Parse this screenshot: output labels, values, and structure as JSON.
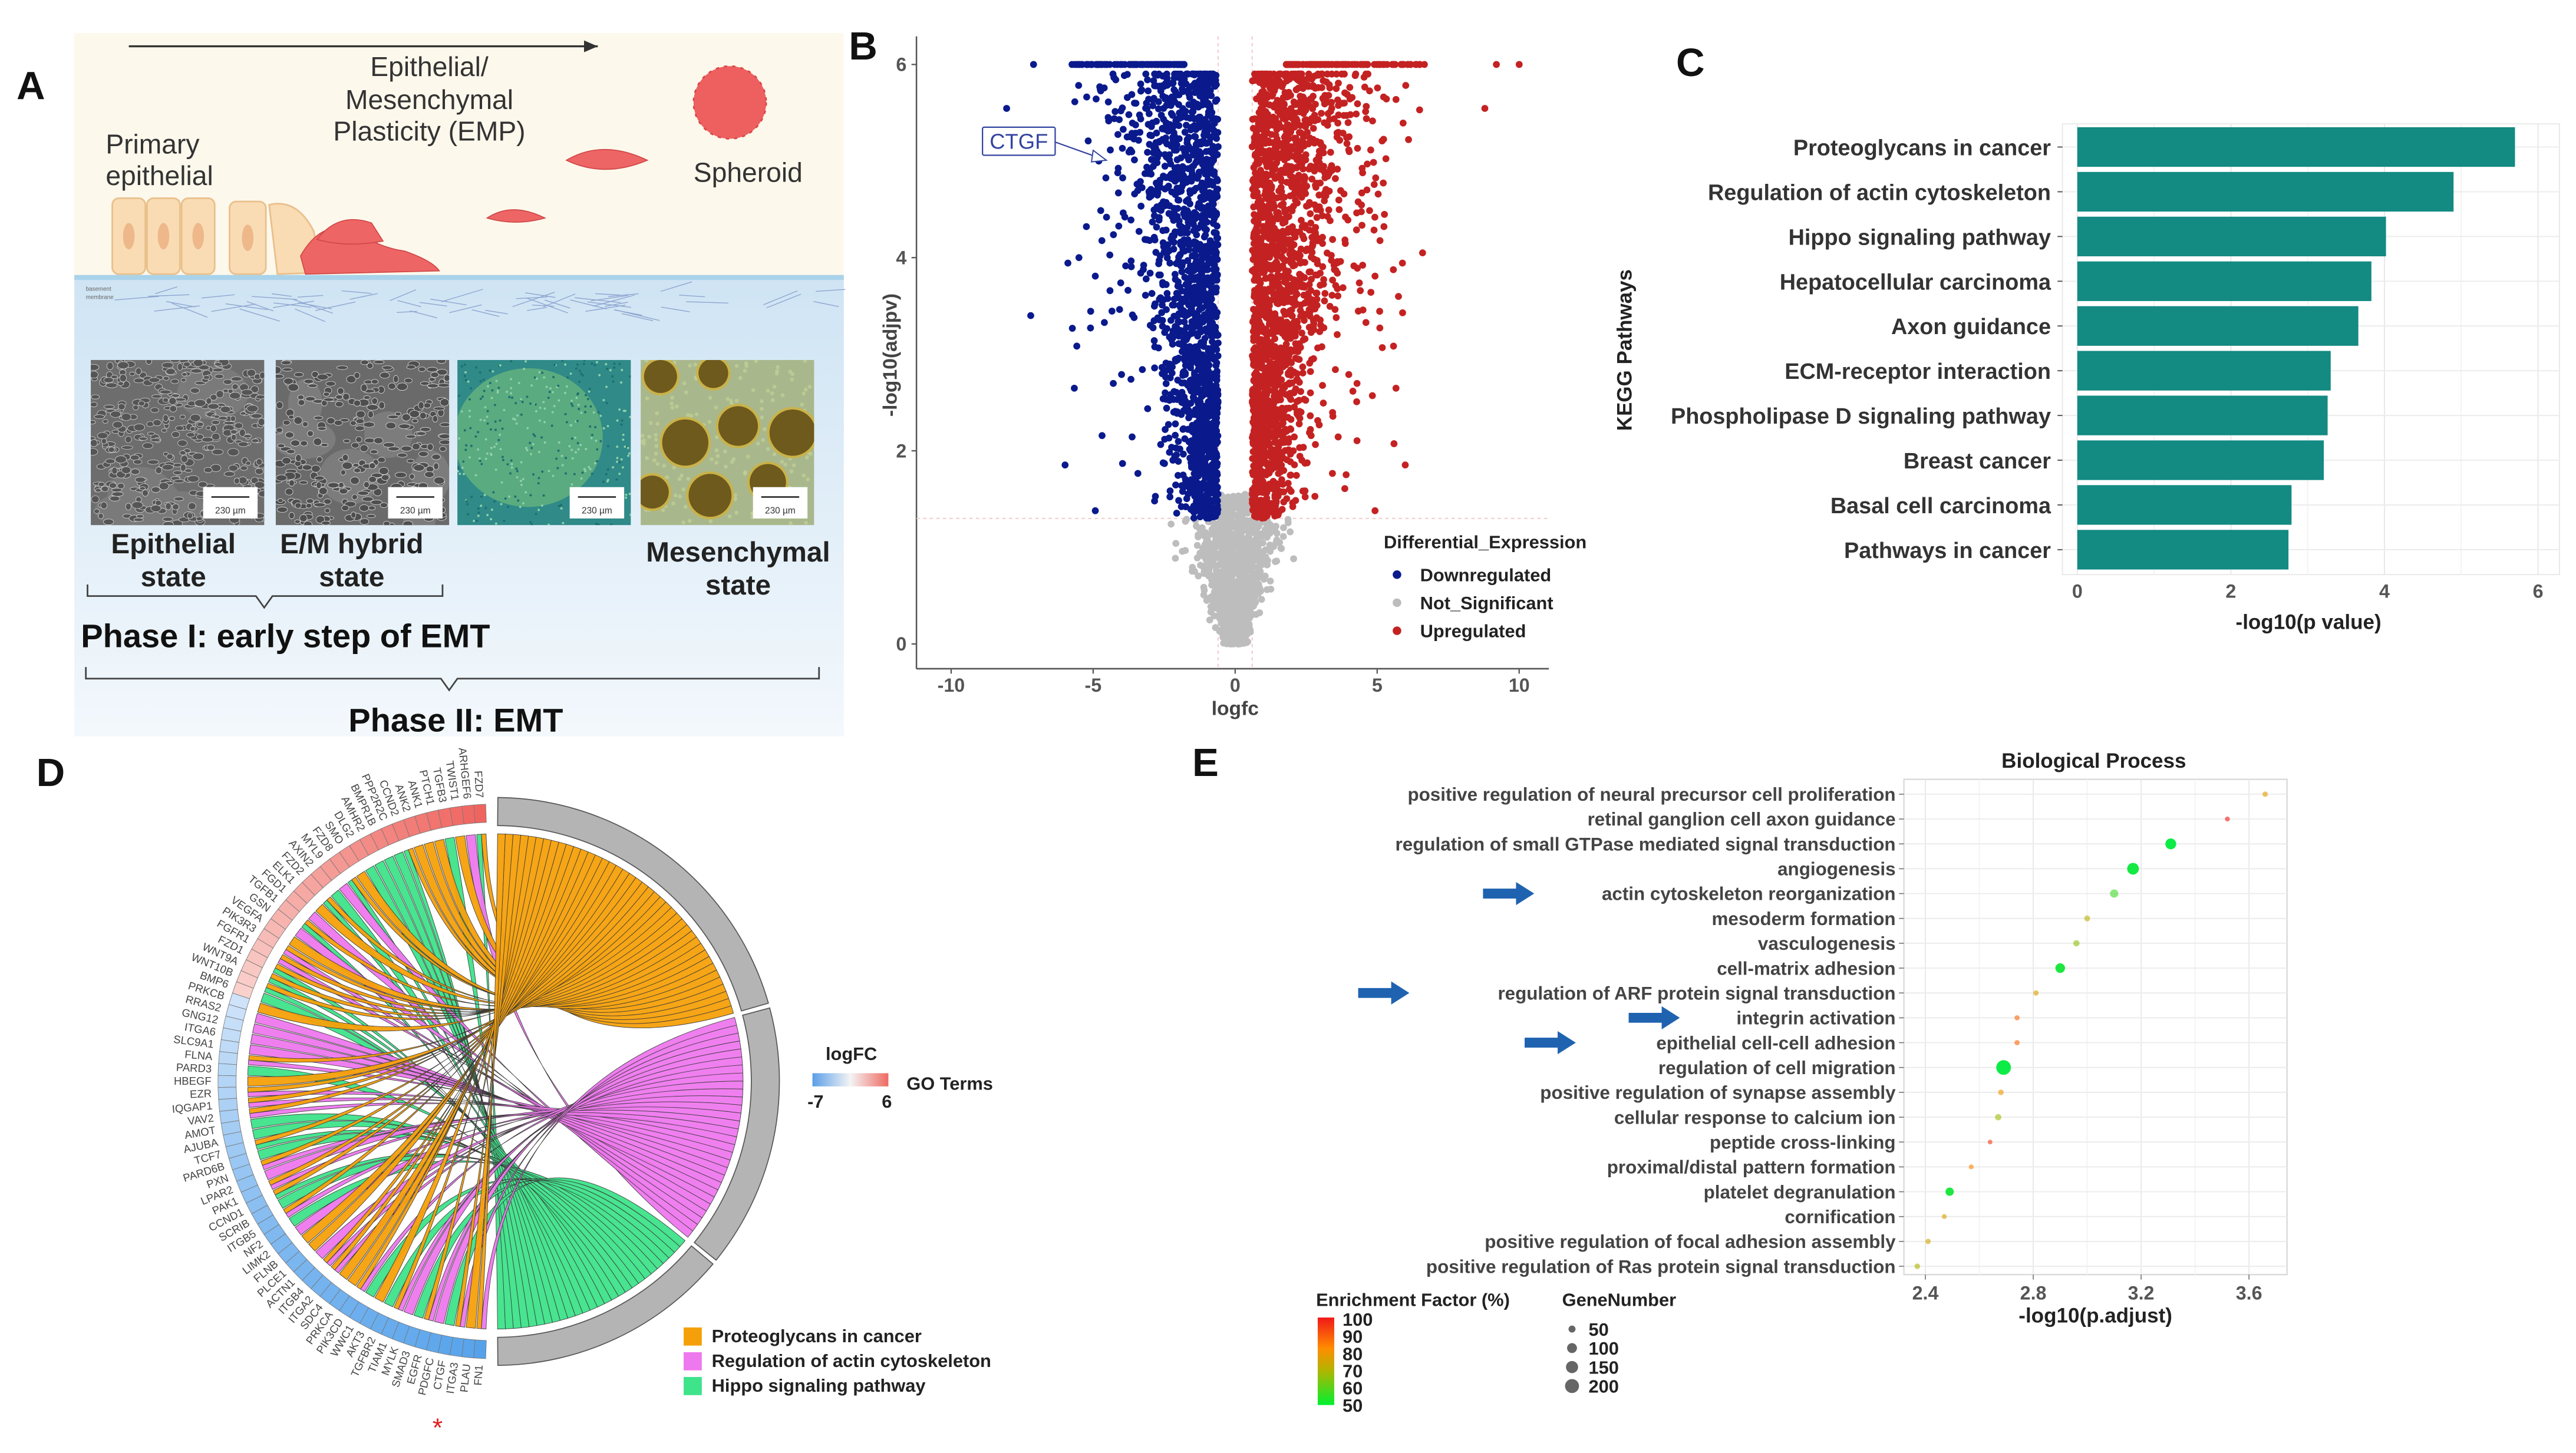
{
  "panels": {
    "a": "A",
    "b": "B",
    "c": "C",
    "d": "D",
    "e": "E"
  },
  "panel_a": {
    "emp_title": [
      "Epithelial/",
      "Mesenchymal",
      "Plasticity (EMP)"
    ],
    "primary": [
      "Primary",
      "epithelial"
    ],
    "spheroid": "Spheroid",
    "membrane": [
      "basement",
      "membrane"
    ],
    "scale_bar": "230 µm",
    "states": {
      "epithelial": [
        "Epithelial",
        "state"
      ],
      "hybrid": [
        "E/M hybrid",
        "state"
      ],
      "mesenchymal": [
        "Mesenchymal",
        "state"
      ]
    },
    "phase1": "Phase I: early step of EMT",
    "phase2": "Phase II: EMT",
    "colors": {
      "bg": "#fdf8ec",
      "cell": "#f9dcb4",
      "mes_cell": "#ee6565",
      "membrane": "#a9d3ea"
    }
  },
  "chart_data": [
    {
      "id": "volcano",
      "type": "scatter",
      "xlabel": "logfc",
      "ylabel": "-log10(adjpv)",
      "xlim": [
        -11,
        11
      ],
      "ylim": [
        -0.2,
        6.3
      ],
      "xticks": [
        "-10",
        "-5",
        "0",
        "5",
        "10"
      ],
      "yticks": [
        "0",
        "2",
        "4",
        "6"
      ],
      "thresholds": {
        "logfc": 0.6,
        "neg_log10_adjpv": 1.3
      },
      "legend_title": "Differential_Expression",
      "legend_position": "right",
      "series": [
        {
          "name": "Downregulated",
          "color": "#0a1a8c",
          "approx_count": 1600
        },
        {
          "name": "Not_Significant",
          "color": "#bdbdbd",
          "approx_count": 1500
        },
        {
          "name": "Upregulated",
          "color": "#c42222",
          "approx_count": 1900
        }
      ],
      "annotation": {
        "label": "CTGF",
        "x": -4.8,
        "y": 5.0
      },
      "grid": false
    },
    {
      "id": "kegg",
      "type": "bar",
      "orientation": "horizontal",
      "ylabel": "KEGG Pathways",
      "xlabel": "-log10(p value)",
      "xlim": [
        0,
        6.2
      ],
      "xticks": [
        "0",
        "2",
        "4",
        "6"
      ],
      "categories": [
        "Proteoglycans in cancer",
        "Regulation of actin cytoskeleton",
        "Hippo signaling pathway",
        "Hepatocellular carcinoma",
        "Axon guidance",
        "ECM-receptor interaction",
        "Phospholipase D signaling pathway",
        "Breast cancer",
        "Basal cell carcinoma",
        "Pathways in cancer"
      ],
      "values": [
        5.7,
        4.9,
        4.02,
        3.83,
        3.66,
        3.3,
        3.26,
        3.21,
        2.79,
        2.75
      ],
      "color": "#138a82",
      "grid": true
    },
    {
      "id": "chord",
      "type": "chord",
      "legend_title": "logFC",
      "logfc_range": [
        "-7",
        "6"
      ],
      "terms_title": "GO Terms",
      "terms": [
        {
          "key": "P",
          "name": "Proteoglycans in cancer",
          "color": "#f5a00a"
        },
        {
          "key": "A",
          "name": "Regulation of actin cytoskeleton",
          "color": "#ee78ee"
        },
        {
          "key": "H",
          "name": "Hippo signaling pathway",
          "color": "#3ee38a"
        }
      ],
      "genes": [
        [
          "FZD7",
          6,
          "PH"
        ],
        [
          "ARHGEF6",
          5.8,
          "A"
        ],
        [
          "TWIST1",
          5.6,
          "P"
        ],
        [
          "TGFB3",
          5.4,
          "H"
        ],
        [
          "PTCH1",
          5.2,
          "P"
        ],
        [
          "ANK1",
          5,
          "P"
        ],
        [
          "ANK2",
          4.8,
          "P"
        ],
        [
          "CCND2",
          4.6,
          "PH"
        ],
        [
          "PPP2R2C",
          4.4,
          "H"
        ],
        [
          "BMPR1B",
          4.2,
          "H"
        ],
        [
          "AMHR2",
          4,
          "H"
        ],
        [
          "DLG2",
          3.8,
          "H"
        ],
        [
          "SMO",
          3.6,
          "P"
        ],
        [
          "FZD8",
          3.4,
          "PH"
        ],
        [
          "MYL9",
          3.2,
          "A"
        ],
        [
          "AXIN2",
          3,
          "H"
        ],
        [
          "FZD2",
          2.8,
          "PH"
        ],
        [
          "ELK1",
          2.6,
          "P"
        ],
        [
          "FGD1",
          2.4,
          "A"
        ],
        [
          "TGFB1",
          2.2,
          "PH"
        ],
        [
          "GSN",
          2,
          "A"
        ],
        [
          "VEGFA",
          1.8,
          "P"
        ],
        [
          "PIK3R3",
          1.6,
          "PA"
        ],
        [
          "FGFR1",
          1.4,
          "PA"
        ],
        [
          "FZD1",
          1.2,
          "PH"
        ],
        [
          "WNT9A",
          1,
          "PH"
        ],
        [
          "WNT10B",
          0.8,
          "PH"
        ],
        [
          "BMP6",
          0.6,
          "H"
        ],
        [
          "PRKCB",
          -0.5,
          "P"
        ],
        [
          "RRAS2",
          -0.7,
          "A"
        ],
        [
          "GNG12",
          -0.9,
          "A"
        ],
        [
          "ITGA6",
          -1.1,
          "A"
        ],
        [
          "SLC9A1",
          -1.3,
          "A"
        ],
        [
          "FLNA",
          -1.5,
          "PA"
        ],
        [
          "PARD3",
          -1.7,
          "H"
        ],
        [
          "HBEGF",
          -1.9,
          "P"
        ],
        [
          "EZR",
          -2.1,
          "PA"
        ],
        [
          "IQGAP1",
          -2.3,
          "PA"
        ],
        [
          "VAV2",
          -2.5,
          "PA"
        ],
        [
          "AMOT",
          -2.7,
          "H"
        ],
        [
          "AJUBA",
          -2.9,
          "H"
        ],
        [
          "TCF7",
          -3.1,
          "PH"
        ],
        [
          "PARD6B",
          -3.3,
          "H"
        ],
        [
          "PXN",
          -3.5,
          "PA"
        ],
        [
          "LPAR2",
          -3.7,
          "A"
        ],
        [
          "PAK1",
          -3.9,
          "PA"
        ],
        [
          "CCND1",
          -4.1,
          "PH"
        ],
        [
          "SCRIB",
          -4.3,
          "H"
        ],
        [
          "ITGB5",
          -4.5,
          "PA"
        ],
        [
          "NF2",
          -4.7,
          "H"
        ],
        [
          "LIMK2",
          -4.8,
          "A"
        ],
        [
          "FLNB",
          -4.9,
          "P"
        ],
        [
          "PLCE1",
          -5,
          "P"
        ],
        [
          "ACTN1",
          -5.1,
          "A"
        ],
        [
          "ITGB4",
          -5.2,
          "PA"
        ],
        [
          "ITGA2",
          -5.3,
          "PA"
        ],
        [
          "SDC4",
          -5.4,
          "P"
        ],
        [
          "PRKCA",
          -5.5,
          "P"
        ],
        [
          "PIK3CD",
          -5.6,
          "PA"
        ],
        [
          "WWC1",
          -5.7,
          "H"
        ],
        [
          "AKT3",
          -5.8,
          "P"
        ],
        [
          "TGFBR2",
          -5.9,
          "H"
        ],
        [
          "TIAM1",
          -6,
          "PA"
        ],
        [
          "MYLK",
          -6.1,
          "A"
        ],
        [
          "SMAD3",
          -6.2,
          "H"
        ],
        [
          "EGFR",
          -6.3,
          "PA"
        ],
        [
          "PDGFC",
          -6.4,
          "A"
        ],
        [
          "CTGF",
          -6.6,
          "H"
        ],
        [
          "ITGA3",
          -6.7,
          "PA"
        ],
        [
          "PLAU",
          -6.8,
          "P"
        ],
        [
          "FN1",
          -7,
          "PA"
        ]
      ],
      "highlight_gene": "CTGF",
      "highlight_mark": "*"
    },
    {
      "id": "bp",
      "type": "scatter",
      "title": "Biological Process",
      "xlabel": "-log10(p.adjust)",
      "xlim": [
        2.33,
        3.72
      ],
      "xticks": [
        "2.4",
        "2.8",
        "3.2",
        "3.6"
      ],
      "categories": [
        "positive regulation of neural precursor cell proliferation",
        "retinal ganglion cell axon guidance",
        "regulation of small GTPase mediated signal transduction",
        "angiogenesis",
        "actin cytoskeleton reorganization",
        "mesoderm formation",
        "vasculogenesis",
        "cell-matrix adhesion",
        "regulation of ARF protein signal transduction",
        "integrin activation",
        "epithelial cell-cell adhesion",
        "regulation of cell migration",
        "positive regulation of synapse assembly",
        "cellular response to calcium ion",
        "peptide cross-linking",
        "proximal/distal pattern formation",
        "platelet degranulation",
        "cornification",
        "positive regulation of focal adhesion assembly",
        "positive regulation of Ras protein signal transduction"
      ],
      "x": [
        3.66,
        3.52,
        3.31,
        3.17,
        3.1,
        3.0,
        2.96,
        2.9,
        2.81,
        2.74,
        2.74,
        2.69,
        2.68,
        2.67,
        2.64,
        2.57,
        2.49,
        2.47,
        2.41,
        2.37
      ],
      "gene_number": [
        30,
        25,
        120,
        140,
        70,
        35,
        40,
        95,
        30,
        28,
        28,
        220,
        32,
        40,
        22,
        25,
        70,
        25,
        30,
        32
      ],
      "enrichment_factor": [
        80,
        100,
        50,
        51,
        57,
        72,
        66,
        52,
        78,
        90,
        90,
        50,
        82,
        68,
        96,
        86,
        52,
        78,
        76,
        70
      ],
      "arrows_at": [
        "actin cytoskeleton reorganization",
        "regulation of ARF protein signal transduction",
        "integrin activation",
        "epithelial cell-cell adhesion"
      ],
      "arrow_color": "#1f63b0",
      "color_legend_title": "Enrichment Factor (%)",
      "color_legend_ticks": [
        "100",
        "90",
        "80",
        "70",
        "60",
        "50"
      ],
      "size_legend_title": "GeneNumber",
      "size_legend_ticks": [
        "50",
        "100",
        "150",
        "200"
      ],
      "grid": true
    }
  ]
}
